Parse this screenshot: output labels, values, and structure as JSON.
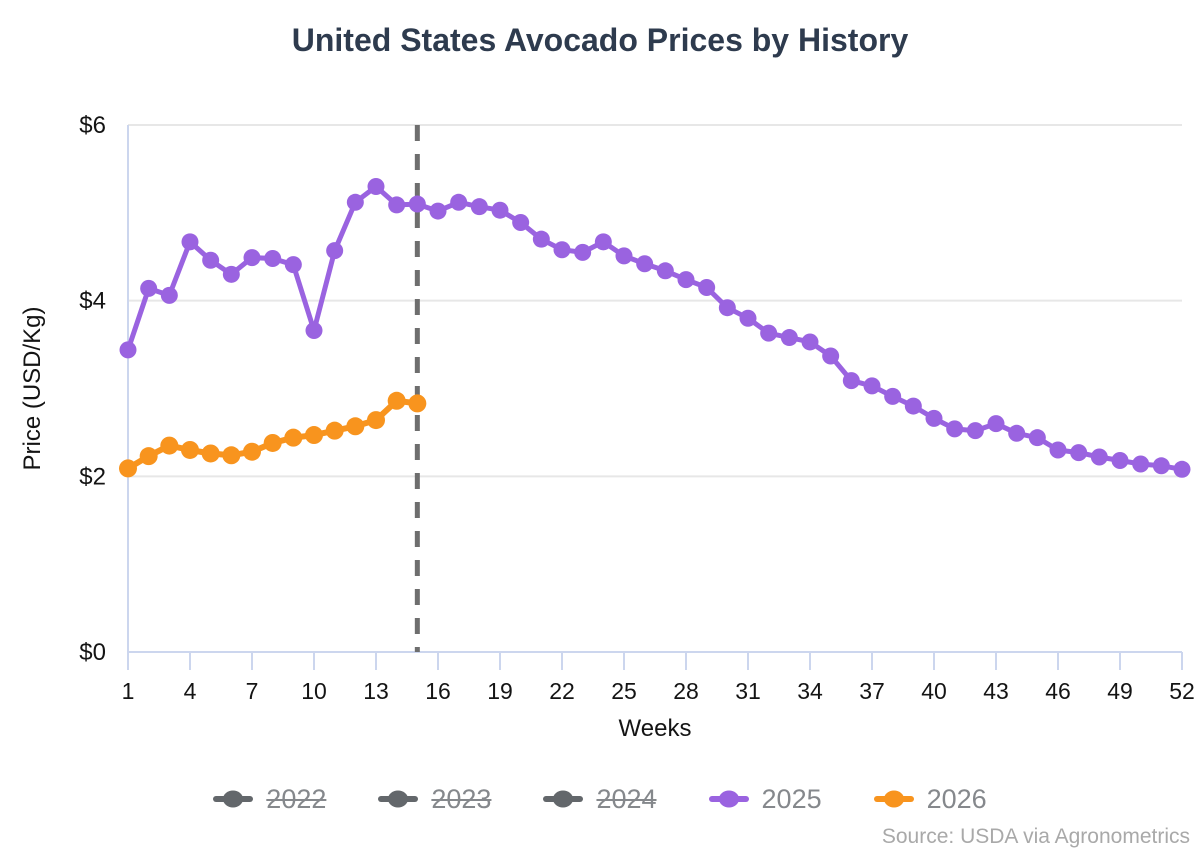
{
  "title": "United States Avocado Prices by History",
  "source": "Source: USDA via Agronometrics",
  "chart_data": {
    "type": "line",
    "title": "United States Avocado Prices by History",
    "xlabel": "Weeks",
    "ylabel": "Price (USD/Kg)",
    "xlim": [
      1,
      52
    ],
    "ylim": [
      0,
      6
    ],
    "grid": "horizontal",
    "x_ticks": [
      1,
      4,
      7,
      10,
      13,
      16,
      19,
      22,
      25,
      28,
      31,
      34,
      37,
      40,
      43,
      46,
      49,
      52
    ],
    "y_ticks": [
      0,
      2,
      4,
      6
    ],
    "y_tick_prefix": "$",
    "divider_week": 15,
    "divider_color": "#6e6e6e",
    "axis_color": "#ccd6ee",
    "grid_color": "#e7e7e7",
    "tick_label_color": "#141414",
    "series": [
      {
        "name": "2025",
        "color": "#9a63e0",
        "x": [
          1,
          2,
          3,
          4,
          5,
          6,
          7,
          8,
          9,
          10,
          11,
          12,
          13,
          14,
          15,
          16,
          17,
          18,
          19,
          20,
          21,
          22,
          23,
          24,
          25,
          26,
          27,
          28,
          29,
          30,
          31,
          32,
          33,
          34,
          35,
          36,
          37,
          38,
          39,
          40,
          41,
          42,
          43,
          44,
          45,
          46,
          47,
          48,
          49,
          50,
          51,
          52
        ],
        "values": [
          3.44,
          4.14,
          4.06,
          4.67,
          4.46,
          4.3,
          4.49,
          4.48,
          4.41,
          3.66,
          4.57,
          5.12,
          5.3,
          5.09,
          5.1,
          5.02,
          5.12,
          5.07,
          5.03,
          4.89,
          4.7,
          4.58,
          4.55,
          4.67,
          4.51,
          4.42,
          4.34,
          4.24,
          4.15,
          3.92,
          3.8,
          3.63,
          3.58,
          3.53,
          3.37,
          3.09,
          3.03,
          2.91,
          2.8,
          2.66,
          2.54,
          2.52,
          2.6,
          2.49,
          2.44,
          2.3,
          2.27,
          2.22,
          2.18,
          2.14,
          2.12,
          2.08
        ]
      },
      {
        "name": "2026",
        "color": "#f8941e",
        "x": [
          1,
          2,
          3,
          4,
          5,
          6,
          7,
          8,
          9,
          10,
          11,
          12,
          13,
          14,
          15
        ],
        "values": [
          2.09,
          2.23,
          2.35,
          2.3,
          2.26,
          2.24,
          2.28,
          2.38,
          2.44,
          2.47,
          2.52,
          2.57,
          2.64,
          2.86,
          2.83
        ]
      }
    ],
    "legend": [
      {
        "label": "2022",
        "color": "#63676b",
        "disabled": true
      },
      {
        "label": "2023",
        "color": "#63676b",
        "disabled": true
      },
      {
        "label": "2024",
        "color": "#63676b",
        "disabled": true
      },
      {
        "label": "2025",
        "color": "#9a63e0",
        "disabled": false
      },
      {
        "label": "2026",
        "color": "#f8941e",
        "disabled": false
      }
    ],
    "legend_position": "bottom"
  }
}
